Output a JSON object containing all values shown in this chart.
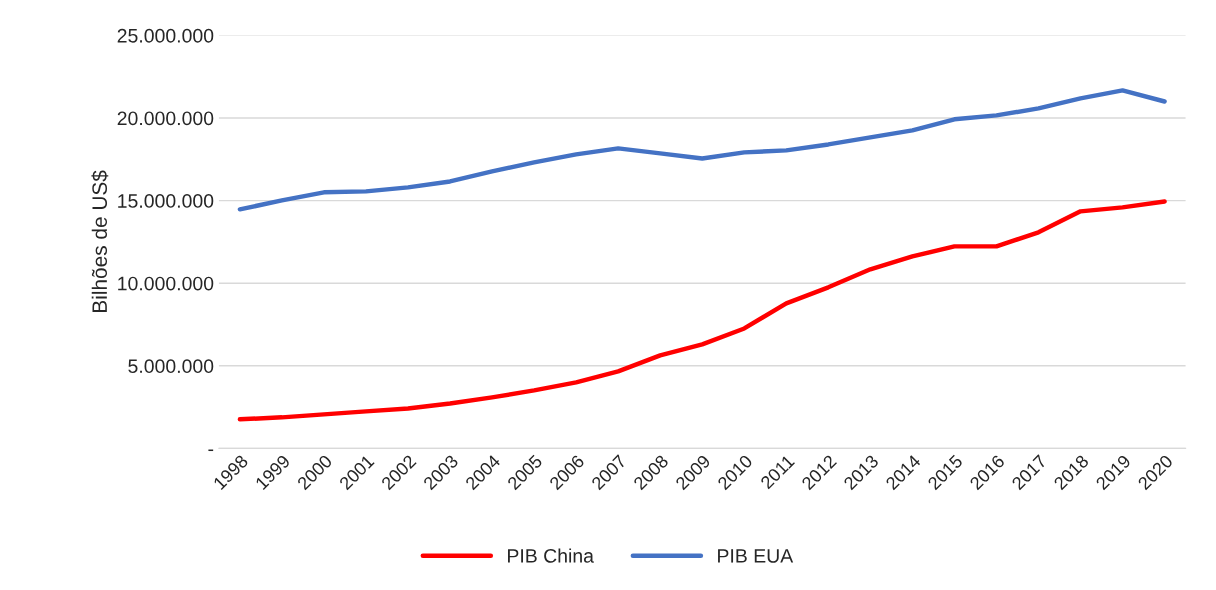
{
  "chart_data": {
    "type": "line",
    "ylabel": "Bilhões de US$",
    "categories": [
      "1998",
      "1999",
      "2000",
      "2001",
      "2002",
      "2003",
      "2004",
      "2005",
      "2006",
      "2007",
      "2008",
      "2009",
      "2010",
      "2011",
      "2012",
      "2013",
      "2014",
      "2015",
      "2016",
      "2017",
      "2018",
      "2019",
      "2020"
    ],
    "series": [
      {
        "name": "PIB China",
        "color": "#ff0000",
        "values": [
          1760000,
          1880000,
          2060000,
          2240000,
          2420000,
          2720000,
          3090000,
          3510000,
          4000000,
          4660000,
          5630000,
          6300000,
          7260000,
          8780000,
          9750000,
          10840000,
          11620000,
          12230000,
          12230000,
          13080000,
          14350000,
          14590000,
          14950000
        ]
      },
      {
        "name": "PIB EUA",
        "color": "#4472c4",
        "values": [
          14470000,
          15010000,
          15500000,
          15560000,
          15800000,
          16160000,
          16770000,
          17310000,
          17800000,
          18160000,
          17860000,
          17550000,
          17920000,
          18040000,
          18400000,
          18830000,
          19250000,
          19920000,
          20160000,
          20580000,
          21190000,
          21670000,
          21000000
        ]
      }
    ],
    "ylim": [
      0,
      25000000
    ],
    "yticks": [
      {
        "value": 0,
        "label": "-"
      },
      {
        "value": 5000000,
        "label": "5.000.000"
      },
      {
        "value": 10000000,
        "label": "10.000.000"
      },
      {
        "value": 15000000,
        "label": "15.000.000"
      },
      {
        "value": 20000000,
        "label": "20.000.000"
      },
      {
        "value": 25000000,
        "label": "25.000.000"
      }
    ],
    "grid": "y",
    "legend": "bottom",
    "line_style": "solid",
    "marker": "none"
  }
}
